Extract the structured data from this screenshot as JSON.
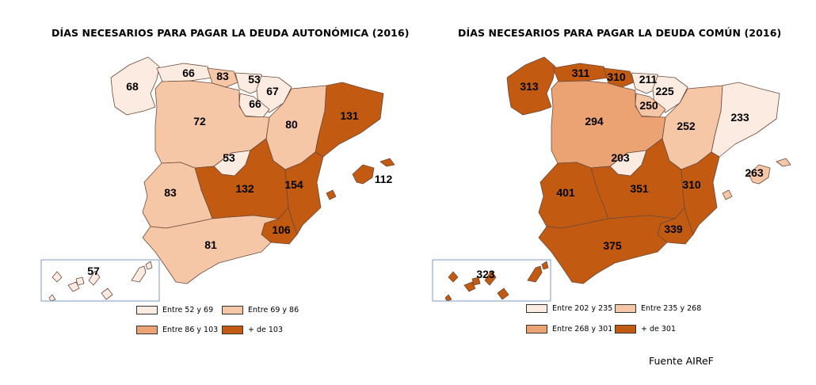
{
  "colors": {
    "c1": "#fcebe0",
    "c2": "#f6c7a6",
    "c3": "#eba374",
    "c4": "#c25a12",
    "stroke": "#6b4a3a",
    "inset_border": "#7b9cc5"
  },
  "maps": {
    "left": {
      "title": "DÍAS NECESARIOS PARA PAGAR LA DEUDA AUTONÓMICA (2016)",
      "values": {
        "galicia": "68",
        "asturias": "66",
        "cantabria": "83",
        "pais_vasco": "53",
        "navarra": "67",
        "la_rioja": "66",
        "castilla_leon": "72",
        "aragon": "80",
        "cataluna": "131",
        "madrid": "53",
        "castilla_la_mancha": "132",
        "valencia": "154",
        "extremadura": "83",
        "andalucia": "81",
        "murcia": "106",
        "baleares": "112",
        "canarias": "57"
      },
      "legend": [
        "Entre 52 y 69",
        "Entre 69 y 86",
        "Entre 86 y 103",
        "+ de 103"
      ]
    },
    "right": {
      "title": "DÍAS NECESARIOS PARA PAGAR LA DEUDA COMÚN (2016)",
      "values": {
        "galicia": "313",
        "asturias": "311",
        "cantabria": "310",
        "pais_vasco": "211",
        "navarra": "225",
        "la_rioja": "250",
        "castilla_leon": "294",
        "aragon": "252",
        "cataluna": "233",
        "madrid": "203",
        "castilla_la_mancha": "351",
        "valencia": "310",
        "extremadura": "401",
        "andalucia": "375",
        "murcia": "339",
        "baleares": "263",
        "canarias": "323"
      },
      "legend": [
        "Entre 202 y 235",
        "Entre 235 y 268",
        "Entre 268 y 301",
        "+ de 301"
      ]
    }
  },
  "source": "Fuente AIReF"
}
